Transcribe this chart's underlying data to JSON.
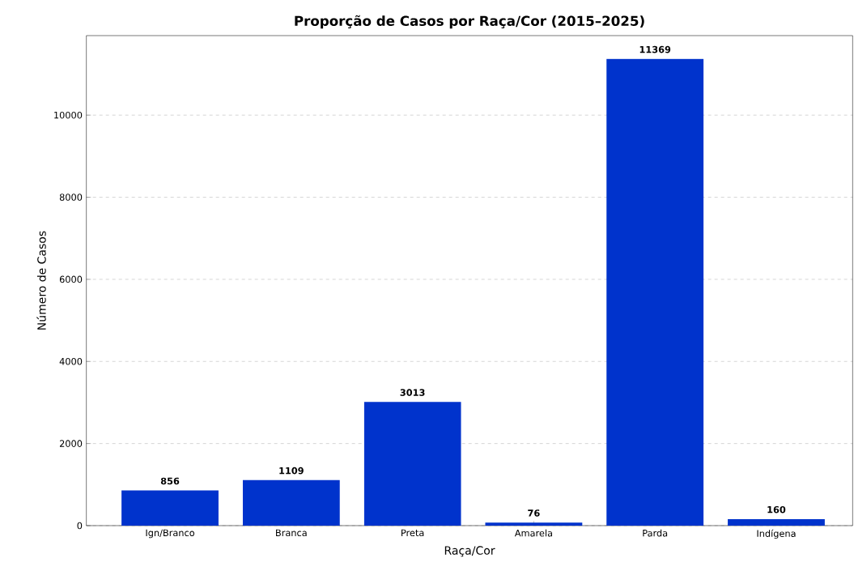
{
  "chart_data": {
    "type": "bar",
    "title": "Proporção de Casos por Raça/Cor (2015–2025)",
    "xlabel": "Raça/Cor",
    "ylabel": "Número de Casos",
    "categories": [
      "Ign/Branco",
      "Branca",
      "Preta",
      "Amarela",
      "Parda",
      "Indígena"
    ],
    "values": [
      856,
      1109,
      3013,
      76,
      11369,
      160
    ],
    "color": "#0033cc",
    "ylim": [
      0,
      11937
    ],
    "yticks": [
      0,
      2000,
      4000,
      6000,
      8000,
      10000
    ],
    "grid": "y",
    "data_labels": true
  }
}
